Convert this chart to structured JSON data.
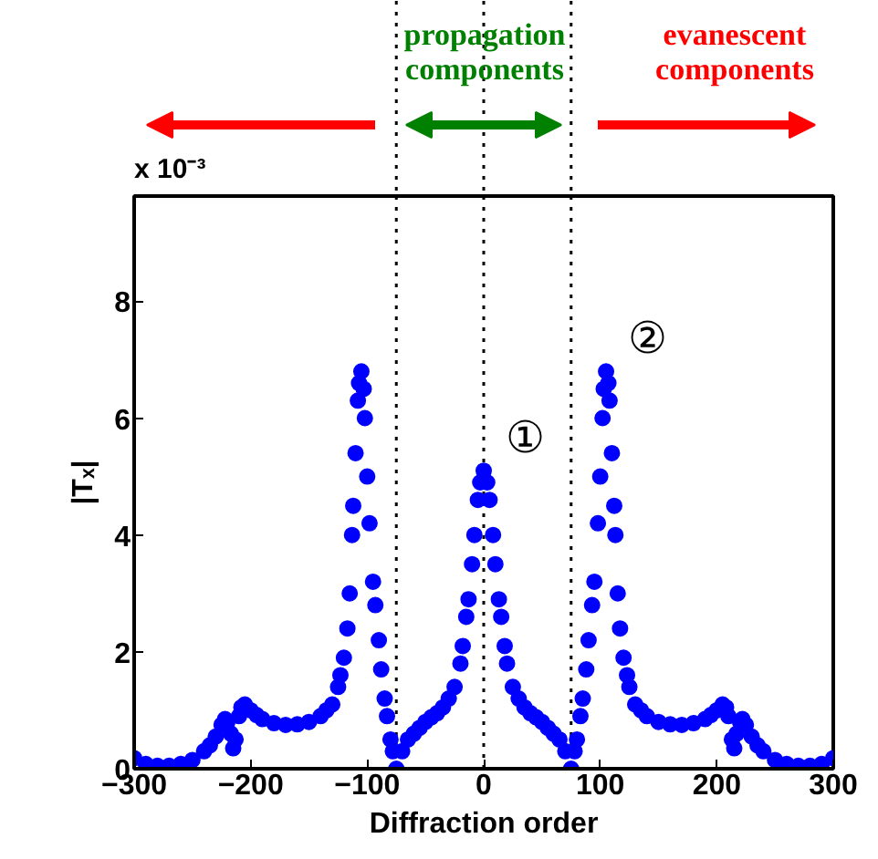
{
  "chart_data": {
    "type": "scatter",
    "xlabel": "Diffraction order",
    "ylabel": "|Tₓ|",
    "marker": "circle",
    "grid": false,
    "xlim": [
      -300,
      300
    ],
    "ylim": [
      0,
      9.8
    ],
    "xticks": [
      -300,
      -200,
      -100,
      0,
      100,
      200,
      300
    ],
    "yticks": [
      0,
      2,
      4,
      6,
      8
    ],
    "ref_lines": [
      {
        "axis": "x",
        "value": -75,
        "label": null,
        "line_style": "dotted",
        "color": "#000000"
      },
      {
        "axis": "x",
        "value": 0,
        "label": null,
        "line_style": "dotted",
        "color": "#000000"
      },
      {
        "axis": "x",
        "value": 75,
        "label": null,
        "line_style": "dotted",
        "color": "#000000"
      }
    ],
    "annotations": [
      "x 10⁻³",
      "propagation components",
      "evanescent components",
      {
        "text": "①",
        "x": 0,
        "y": 5.1
      },
      {
        "text": "②",
        "x": 105,
        "y": 6.8
      }
    ],
    "series": [
      {
        "color": "#0000ff",
        "x": [
          -300,
          -290,
          -280,
          -270,
          -260,
          -250,
          -240,
          -235,
          -230,
          -225,
          -222,
          -220,
          -217,
          -215,
          -213,
          -210,
          -208,
          -205,
          -200,
          -195,
          -190,
          -180,
          -170,
          -160,
          -150,
          -140,
          -135,
          -130,
          -125,
          -123,
          -120,
          -117,
          -115,
          -113,
          -112,
          -110,
          -108,
          -107,
          -105,
          -103,
          -102,
          -100,
          -98,
          -95,
          -93,
          -90,
          -88,
          -85,
          -83,
          -80,
          -78,
          -75,
          -70,
          -65,
          -60,
          -55,
          -50,
          -45,
          -40,
          -35,
          -30,
          -25,
          -20,
          -18,
          -15,
          -13,
          -10,
          -8,
          -5,
          -3,
          0,
          3,
          5,
          8,
          10,
          13,
          15,
          18,
          20,
          25,
          30,
          35,
          40,
          45,
          50,
          55,
          60,
          65,
          70,
          75,
          78,
          80,
          83,
          85,
          88,
          90,
          93,
          95,
          98,
          100,
          102,
          103,
          105,
          107,
          108,
          110,
          112,
          113,
          115,
          117,
          120,
          123,
          125,
          130,
          135,
          140,
          150,
          160,
          170,
          180,
          190,
          195,
          200,
          205,
          208,
          210,
          213,
          215,
          217,
          220,
          222,
          225,
          230,
          235,
          240,
          250,
          260,
          270,
          280,
          290,
          300
        ],
        "values": [
          0.18,
          0.08,
          0.05,
          0.05,
          0.08,
          0.15,
          0.3,
          0.4,
          0.55,
          0.75,
          0.85,
          0.8,
          0.6,
          0.35,
          0.5,
          0.9,
          1.05,
          1.1,
          1.0,
          0.92,
          0.85,
          0.78,
          0.75,
          0.76,
          0.8,
          0.9,
          1.0,
          1.1,
          1.4,
          1.6,
          1.9,
          2.4,
          3.0,
          4.0,
          4.5,
          5.4,
          6.3,
          6.6,
          6.8,
          6.5,
          6.0,
          5.0,
          4.2,
          3.2,
          2.8,
          2.2,
          1.7,
          1.2,
          0.9,
          0.5,
          0.3,
          0.0,
          0.3,
          0.5,
          0.6,
          0.7,
          0.8,
          0.88,
          0.95,
          1.05,
          1.2,
          1.4,
          1.8,
          2.1,
          2.6,
          2.9,
          3.5,
          4.0,
          4.6,
          4.9,
          5.1,
          4.9,
          4.6,
          4.0,
          3.5,
          2.9,
          2.6,
          2.1,
          1.8,
          1.4,
          1.2,
          1.05,
          0.95,
          0.88,
          0.8,
          0.7,
          0.6,
          0.5,
          0.3,
          0.0,
          0.3,
          0.5,
          0.9,
          1.2,
          1.7,
          2.2,
          2.8,
          3.2,
          4.2,
          5.0,
          6.0,
          6.5,
          6.8,
          6.6,
          6.3,
          5.4,
          4.5,
          4.0,
          3.0,
          2.4,
          1.9,
          1.6,
          1.4,
          1.1,
          1.0,
          0.9,
          0.8,
          0.76,
          0.75,
          0.78,
          0.85,
          0.92,
          1.0,
          1.1,
          1.05,
          0.9,
          0.5,
          0.35,
          0.6,
          0.8,
          0.85,
          0.75,
          0.55,
          0.4,
          0.3,
          0.15,
          0.08,
          0.05,
          0.05,
          0.08,
          0.18
        ]
      }
    ]
  }
}
